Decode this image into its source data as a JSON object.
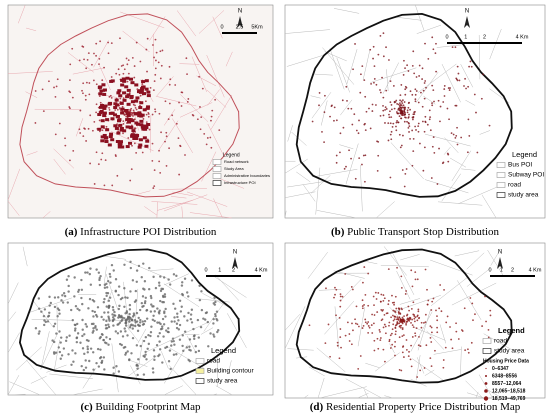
{
  "panels": [
    {
      "label": "(a)",
      "caption": "Infrastructure POI Distribution",
      "north": "N",
      "scale": [
        "0",
        "2.5",
        "5Km"
      ],
      "legend": {
        "title": "Legend",
        "items": [
          "Road network",
          "Study Area",
          "Administrative boundaries",
          "Infrastructure POI"
        ]
      }
    },
    {
      "label": "(b)",
      "caption": "Public Transport Stop Distribution",
      "north": "N",
      "scale": [
        "0",
        "1",
        "2",
        "4 Km"
      ],
      "legend": {
        "title": "Legend",
        "items": [
          "Bus POI",
          "Subway POI",
          "road",
          "study area"
        ]
      }
    },
    {
      "label": "(c)",
      "caption": "Building Footprint Map",
      "north": "N",
      "scale": [
        "0",
        "1",
        "2",
        "4 Km"
      ],
      "legend": {
        "title": "Legend",
        "items": [
          "road",
          "Building contour",
          "study area"
        ]
      }
    },
    {
      "label": "(d)",
      "caption": "Residential Property Price Distribution Map",
      "north": "N",
      "scale": [
        "0",
        "1",
        "2",
        "4 Km"
      ],
      "legend": {
        "title": "Legend",
        "items": [
          "road",
          "study area"
        ],
        "subtitle": "Housing Price Data",
        "classes": [
          "0–6347",
          "6348–8556",
          "8557–12,064",
          "12,065–18,518",
          "18,519–49,769"
        ]
      }
    }
  ]
}
